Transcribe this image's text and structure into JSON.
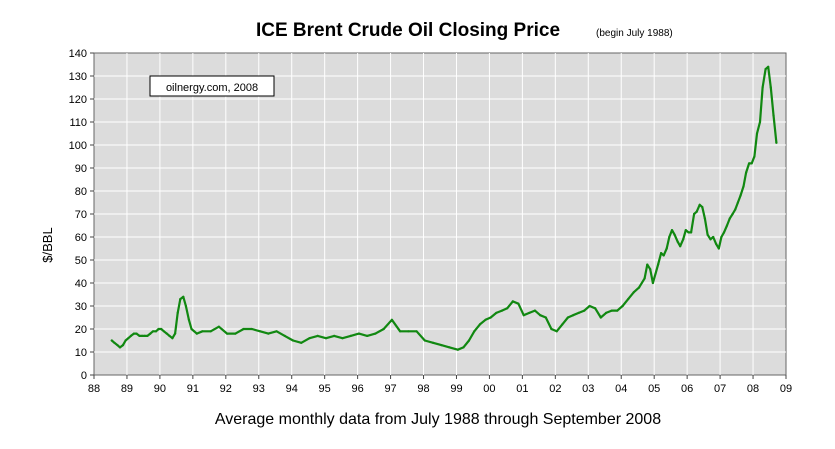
{
  "chart_data": {
    "type": "line",
    "title": "ICE Brent Crude Oil Closing Price",
    "subtitle": "(begin July 1988)",
    "xlabel": "Average monthly data from July 1988 through September 2008",
    "ylabel": "$/BBL",
    "annotation": "oilnergy.com, 2008",
    "ylim": [
      0,
      140
    ],
    "yticks": [
      0,
      10,
      20,
      30,
      40,
      50,
      60,
      70,
      80,
      90,
      100,
      110,
      120,
      130,
      140
    ],
    "xlim": [
      1988,
      2009
    ],
    "xtick_labels": [
      "88",
      "89",
      "90",
      "91",
      "92",
      "93",
      "94",
      "95",
      "96",
      "97",
      "98",
      "99",
      "00",
      "01",
      "02",
      "03",
      "04",
      "05",
      "06",
      "07",
      "08",
      "09"
    ],
    "grid": true,
    "legend": "none",
    "colors": {
      "line": "#118811",
      "plot_bg": "#dcdcdc",
      "gridline": "#ffffff"
    },
    "series": [
      {
        "x": [
          1988.54,
          1988.62,
          1988.71,
          1988.79,
          1988.88,
          1988.96,
          1989.04,
          1989.12,
          1989.21,
          1989.29,
          1989.38,
          1989.46,
          1989.54,
          1989.62,
          1989.71,
          1989.79,
          1989.88,
          1989.96,
          1990.04,
          1990.12,
          1990.21,
          1990.29,
          1990.38,
          1990.46,
          1990.54,
          1990.62,
          1990.71,
          1990.79,
          1990.88,
          1990.96,
          1991.04,
          1991.12,
          1991.29,
          1991.54,
          1991.79,
          1992.04,
          1992.29,
          1992.54,
          1992.79,
          1993.04,
          1993.29,
          1993.54,
          1993.79,
          1994.04,
          1994.29,
          1994.54,
          1994.79,
          1995.04,
          1995.29,
          1995.54,
          1995.79,
          1996.04,
          1996.29,
          1996.54,
          1996.79,
          1997.04,
          1997.29,
          1997.54,
          1997.79,
          1998.04,
          1998.29,
          1998.54,
          1998.79,
          1999.04,
          1999.21,
          1999.38,
          1999.54,
          1999.71,
          1999.88,
          2000.04,
          2000.21,
          2000.38,
          2000.54,
          2000.71,
          2000.88,
          2001.04,
          2001.21,
          2001.38,
          2001.54,
          2001.71,
          2001.88,
          2002.04,
          2002.21,
          2002.38,
          2002.54,
          2002.71,
          2002.88,
          2003.04,
          2003.21,
          2003.38,
          2003.54,
          2003.71,
          2003.88,
          2004.04,
          2004.21,
          2004.38,
          2004.54,
          2004.71,
          2004.79,
          2004.88,
          2004.96,
          2005.04,
          2005.12,
          2005.21,
          2005.29,
          2005.38,
          2005.46,
          2005.54,
          2005.62,
          2005.71,
          2005.79,
          2005.88,
          2005.96,
          2006.04,
          2006.12,
          2006.21,
          2006.29,
          2006.38,
          2006.46,
          2006.54,
          2006.62,
          2006.71,
          2006.79,
          2006.88,
          2006.96,
          2007.04,
          2007.12,
          2007.21,
          2007.29,
          2007.38,
          2007.46,
          2007.54,
          2007.62,
          2007.71,
          2007.79,
          2007.88,
          2007.96,
          2008.04,
          2008.12,
          2008.21,
          2008.29,
          2008.38,
          2008.46,
          2008.54,
          2008.62,
          2008.71
        ],
        "y": [
          15,
          14,
          13,
          12,
          13,
          15,
          16,
          17,
          18,
          18,
          17,
          17,
          17,
          17,
          18,
          19,
          19,
          20,
          20,
          19,
          18,
          17,
          16,
          18,
          27,
          33,
          34,
          30,
          24,
          20,
          19,
          18,
          19,
          19,
          21,
          18,
          18,
          20,
          20,
          19,
          18,
          19,
          17,
          15,
          14,
          16,
          17,
          16,
          17,
          16,
          17,
          18,
          17,
          18,
          20,
          24,
          19,
          19,
          19,
          15,
          14,
          13,
          12,
          11,
          12,
          15,
          19,
          22,
          24,
          25,
          27,
          28,
          29,
          32,
          31,
          26,
          27,
          28,
          26,
          25,
          20,
          19,
          22,
          25,
          26,
          27,
          28,
          30,
          29,
          25,
          27,
          28,
          28,
          30,
          33,
          36,
          38,
          42,
          48,
          46,
          40,
          44,
          48,
          53,
          52,
          55,
          60,
          63,
          61,
          58,
          56,
          59,
          63,
          62,
          62,
          70,
          71,
          74,
          73,
          68,
          61,
          59,
          60,
          57,
          55,
          60,
          62,
          65,
          68,
          70,
          72,
          75,
          78,
          82,
          88,
          92,
          92,
          95,
          105,
          110,
          125,
          133,
          134,
          125,
          113,
          101
        ]
      }
    ]
  }
}
